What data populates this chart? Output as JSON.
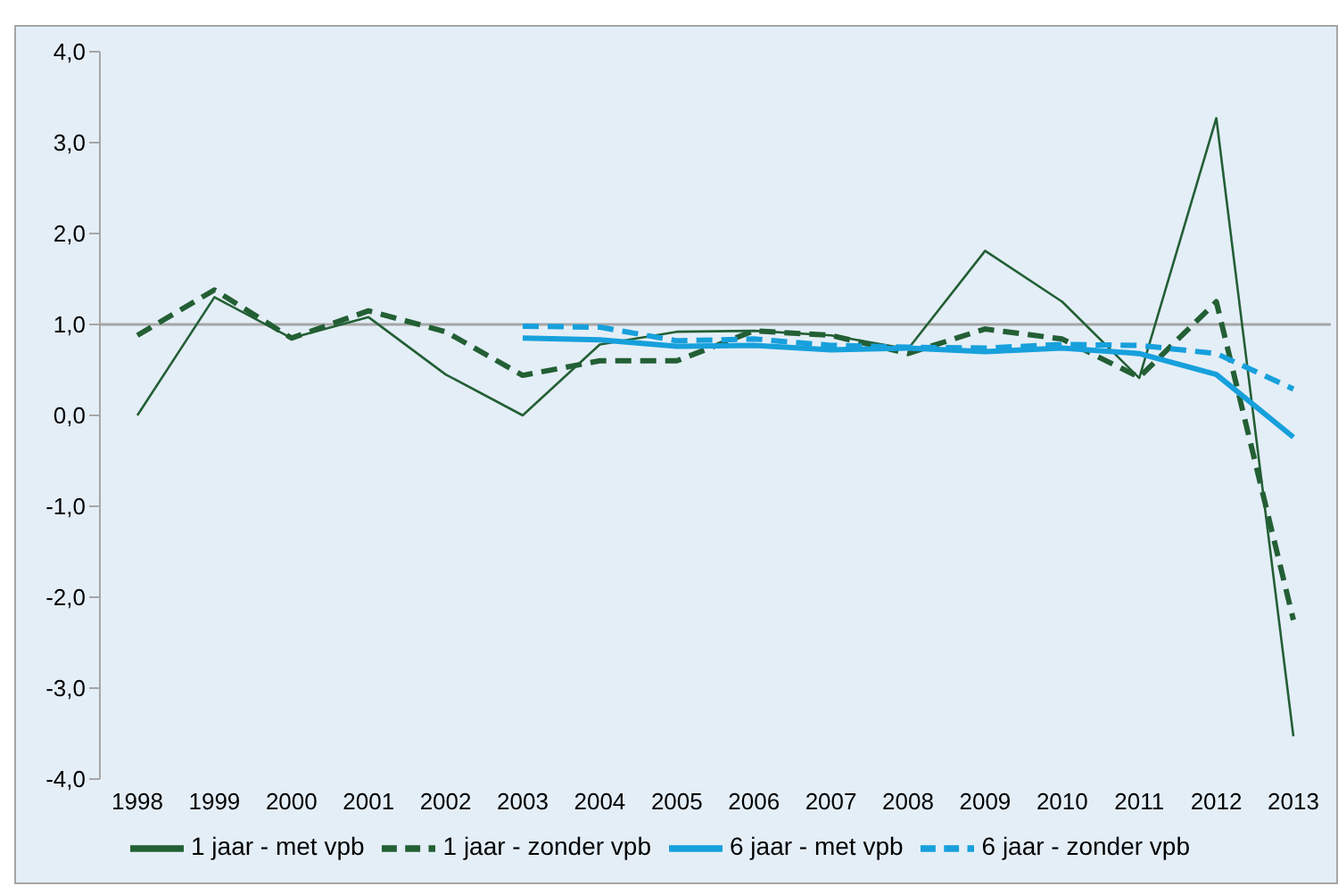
{
  "chart_data": {
    "type": "line",
    "categories": [
      "1998",
      "1999",
      "2000",
      "2001",
      "2002",
      "2003",
      "2004",
      "2005",
      "2006",
      "2007",
      "2008",
      "2009",
      "2010",
      "2011",
      "2012",
      "2013"
    ],
    "series": [
      {
        "name": "1 jaar - met vpb",
        "color": "#235f35",
        "line_style": "solid",
        "values": [
          0.0,
          1.3,
          0.85,
          1.08,
          0.45,
          0.0,
          0.78,
          0.92,
          0.93,
          0.88,
          0.73,
          1.81,
          1.25,
          0.41,
          3.27,
          -3.53
        ]
      },
      {
        "name": "1 jaar - zonder vpb",
        "color": "#235f35",
        "line_style": "dashed",
        "values": [
          0.88,
          1.38,
          0.85,
          1.15,
          0.92,
          0.44,
          0.6,
          0.6,
          0.93,
          0.88,
          0.68,
          0.95,
          0.84,
          0.42,
          1.25,
          -2.25
        ]
      },
      {
        "name": "6 jaar - met vpb",
        "color": "#17a0dc",
        "line_style": "solid",
        "values": [
          null,
          null,
          null,
          null,
          null,
          0.85,
          0.83,
          0.76,
          0.77,
          0.72,
          0.74,
          0.7,
          0.74,
          0.68,
          0.45,
          -0.24
        ]
      },
      {
        "name": "6 jaar - zonder vpb",
        "color": "#17a0dc",
        "line_style": "dashed",
        "values": [
          null,
          null,
          null,
          null,
          null,
          0.98,
          0.97,
          0.82,
          0.84,
          0.77,
          0.75,
          0.74,
          0.78,
          0.77,
          0.68,
          0.29
        ]
      }
    ],
    "ylim": [
      -4,
      4
    ],
    "yticks": [
      {
        "value": -4,
        "label": "-4,0"
      },
      {
        "value": -3,
        "label": "-3,0"
      },
      {
        "value": -2,
        "label": "-2,0"
      },
      {
        "value": -1,
        "label": "-1,0"
      },
      {
        "value": 0,
        "label": "0,0"
      },
      {
        "value": 1,
        "label": "1,0"
      },
      {
        "value": 2,
        "label": "2,0"
      },
      {
        "value": 3,
        "label": "3,0"
      },
      {
        "value": 4,
        "label": "4,0"
      }
    ],
    "ref_lines": [
      {
        "axis": "y",
        "value": 1,
        "color": "#a6a6a6"
      }
    ],
    "grid": false,
    "marker": "none",
    "legend": "bottom"
  }
}
